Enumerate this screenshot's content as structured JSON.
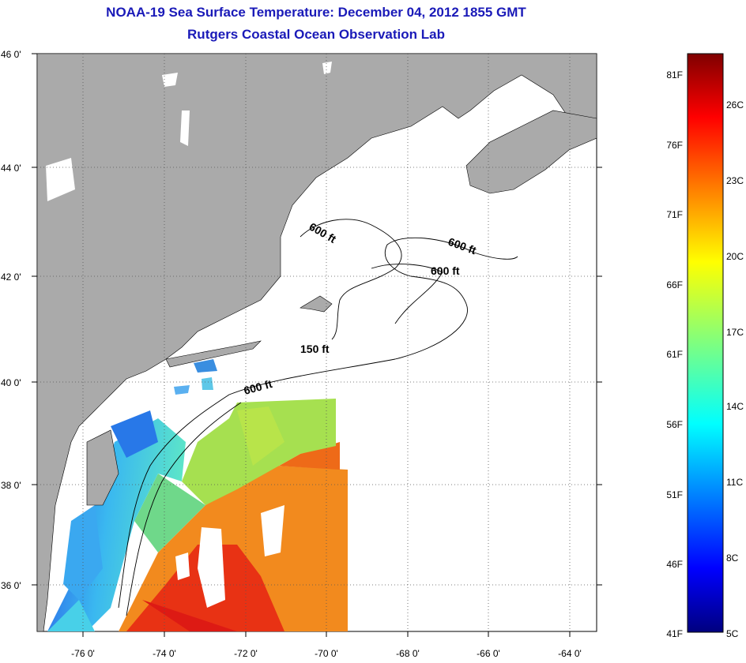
{
  "header": {
    "title_line_1": "NOAA-19 Sea Surface Temperature:  December 04, 2012 1855 GMT",
    "title_line_2": "Rutgers Coastal Ocean Observation Lab"
  },
  "map": {
    "lat_labels": [
      "46 0'",
      "44 0'",
      "42 0'",
      "40 0'",
      "38 0'",
      "36 0'"
    ],
    "lon_labels": [
      "-76 0'",
      "-74 0'",
      "-72 0'",
      "-70 0'",
      "-68 0'",
      "-66 0'",
      "-64 0'"
    ],
    "contour_labels": [
      "600 ft",
      "600 ft",
      "600 ft",
      "150 ft",
      "600 ft"
    ],
    "colors": {
      "land": "#aaaaaa",
      "water_no_data": "#ffffff",
      "grid": "#555555"
    }
  },
  "colorbar": {
    "fahrenheit_labels": [
      "81F",
      "76F",
      "71F",
      "66F",
      "61F",
      "56F",
      "51F",
      "46F",
      "41F"
    ],
    "celsius_labels": [
      "26C",
      "23C",
      "20C",
      "17C",
      "14C",
      "11C",
      "8C",
      "5C"
    ],
    "range_f": [
      41,
      82
    ],
    "range_c": [
      5,
      27.8
    ]
  }
}
